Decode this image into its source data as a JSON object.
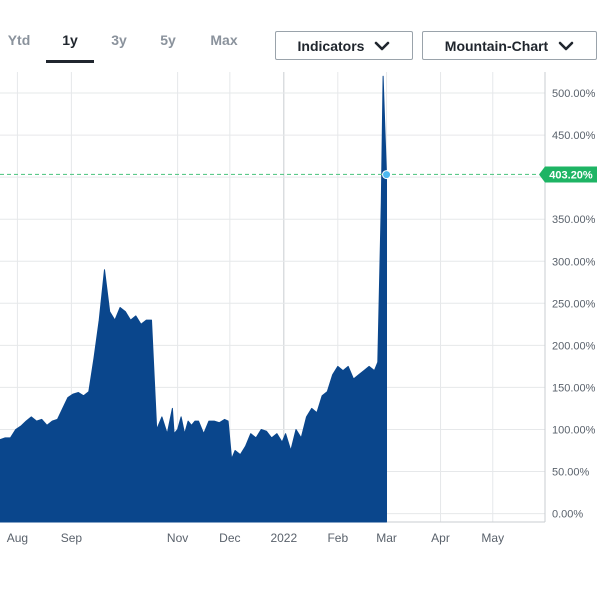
{
  "tabs": [
    {
      "label": "Ytd",
      "active": false
    },
    {
      "label": "1y",
      "active": true
    },
    {
      "label": "3y",
      "active": false
    },
    {
      "label": "5y",
      "active": false
    },
    {
      "label": "Max",
      "active": false
    }
  ],
  "controls": {
    "indicators_label": "Indicators",
    "chart_type_label": "Mountain-Chart",
    "chevron_icon": "chevron-down-icon"
  },
  "colors": {
    "fill": "#0a468c",
    "marker": "#4db8f0",
    "current_badge": "#1eb464",
    "current_line": "#5cc98a",
    "grid": "#e6e8ea",
    "axis_text": "#5a626c"
  },
  "chart_data": {
    "type": "area",
    "title": "",
    "xlabel": "",
    "ylabel": "",
    "ylim": [
      -10,
      525
    ],
    "y_ticks": [
      "0.00%",
      "50.00%",
      "100.00%",
      "150.00%",
      "200.00%",
      "250.00%",
      "300.00%",
      "350.00%",
      "400.00%",
      "450.00%",
      "500.00%"
    ],
    "y_tick_values": [
      0,
      50,
      100,
      150,
      200,
      250,
      300,
      350,
      400,
      450,
      500
    ],
    "x_range": [
      "2021-07-22",
      "2022-05-31"
    ],
    "x_ticks": [
      {
        "label": "Aug",
        "date": "2021-08-01"
      },
      {
        "label": "Sep",
        "date": "2021-09-01"
      },
      {
        "label": "Nov",
        "date": "2021-11-01"
      },
      {
        "label": "Dec",
        "date": "2021-12-01"
      },
      {
        "label": "2022",
        "date": "2022-01-01"
      },
      {
        "label": "Feb",
        "date": "2022-02-01"
      },
      {
        "label": "Mar",
        "date": "2022-03-01"
      },
      {
        "label": "Apr",
        "date": "2022-04-01"
      },
      {
        "label": "May",
        "date": "2022-05-01"
      }
    ],
    "current_value": 403.2,
    "current_label": "403.20%",
    "grid": true,
    "series": [
      {
        "x": [
          "2021-07-22",
          "2021-07-25",
          "2021-07-28",
          "2021-07-31",
          "2021-08-03",
          "2021-08-06",
          "2021-08-09",
          "2021-08-12",
          "2021-08-15",
          "2021-08-18",
          "2021-08-21",
          "2021-08-24",
          "2021-08-27",
          "2021-08-30",
          "2021-09-02",
          "2021-09-05",
          "2021-09-08",
          "2021-09-11",
          "2021-09-14",
          "2021-09-17",
          "2021-09-20",
          "2021-09-23",
          "2021-09-26",
          "2021-09-29",
          "2021-10-02",
          "2021-10-05",
          "2021-10-08",
          "2021-10-11",
          "2021-10-14",
          "2021-10-17",
          "2021-10-20",
          "2021-10-23",
          "2021-10-26",
          "2021-10-29",
          "2021-10-30",
          "2021-11-01",
          "2021-11-03",
          "2021-11-05",
          "2021-11-07",
          "2021-11-09",
          "2021-11-11",
          "2021-11-13",
          "2021-11-16",
          "2021-11-19",
          "2021-11-22",
          "2021-11-25",
          "2021-11-28",
          "2021-11-30",
          "2021-12-02",
          "2021-12-04",
          "2021-12-07",
          "2021-12-10",
          "2021-12-13",
          "2021-12-16",
          "2021-12-19",
          "2021-12-22",
          "2021-12-25",
          "2021-12-28",
          "2021-12-31",
          "2022-01-02",
          "2022-01-05",
          "2022-01-08",
          "2022-01-11",
          "2022-01-14",
          "2022-01-17",
          "2022-01-20",
          "2022-01-23",
          "2022-01-26",
          "2022-01-29",
          "2022-02-01",
          "2022-02-04",
          "2022-02-07",
          "2022-02-10",
          "2022-02-13",
          "2022-02-16",
          "2022-02-19",
          "2022-02-22",
          "2022-02-24",
          "2022-02-26",
          "2022-02-27",
          "2022-02-28",
          "2022-03-01"
        ],
        "values": [
          88,
          90,
          90,
          100,
          104,
          110,
          115,
          110,
          112,
          105,
          110,
          112,
          125,
          138,
          142,
          144,
          140,
          145,
          185,
          230,
          290,
          240,
          230,
          245,
          240,
          230,
          235,
          225,
          230,
          230,
          100,
          115,
          95,
          125,
          95,
          100,
          115,
          95,
          110,
          105,
          110,
          110,
          95,
          110,
          110,
          108,
          112,
          110,
          65,
          75,
          70,
          80,
          95,
          90,
          100,
          98,
          90,
          95,
          85,
          95,
          75,
          100,
          90,
          115,
          125,
          120,
          140,
          145,
          165,
          175,
          170,
          175,
          160,
          165,
          170,
          175,
          170,
          180,
          370,
          520,
          460,
          403
        ]
      }
    ]
  }
}
